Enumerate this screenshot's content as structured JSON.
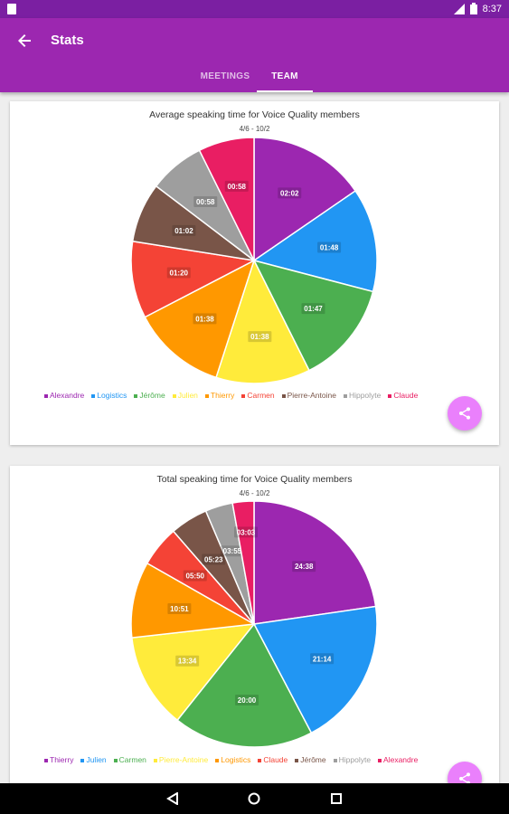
{
  "status_bar": {
    "time": "8:37",
    "signal_icon": "signal-icon",
    "battery_icon": "battery-icon"
  },
  "app_bar": {
    "title": "Stats",
    "back_icon": "arrow-back-icon",
    "color": "#9c27b0"
  },
  "tabs": [
    {
      "label": "MEETINGS",
      "selected": false
    },
    {
      "label": "TEAM",
      "selected": true
    }
  ],
  "chart_data": [
    {
      "type": "pie",
      "title": "Average speaking time for Voice Quality members",
      "subtitle": "4/6 - 10/2",
      "legend_placement": "bottom",
      "slices": [
        {
          "name": "Alexandre",
          "label": "02:02",
          "value": 122,
          "color": "#9c27b0"
        },
        {
          "name": "Logistics",
          "label": "01:48",
          "value": 108,
          "color": "#2196f3"
        },
        {
          "name": "Jérôme",
          "label": "01:47",
          "value": 107,
          "color": "#4caf50"
        },
        {
          "name": "Julien",
          "label": "01:38",
          "value": 98,
          "color": "#ffeb3b"
        },
        {
          "name": "Thierry",
          "label": "01:38",
          "value": 98,
          "color": "#ff9800"
        },
        {
          "name": "Carmen",
          "label": "01:20",
          "value": 80,
          "color": "#f44336"
        },
        {
          "name": "Pierre-Antoine",
          "label": "01:02",
          "value": 62,
          "color": "#795548"
        },
        {
          "name": "Hippolyte",
          "label": "00:58",
          "value": 58,
          "color": "#9e9e9e"
        },
        {
          "name": "Claude",
          "label": "00:58",
          "value": 58,
          "color": "#e91e63"
        }
      ]
    },
    {
      "type": "pie",
      "title": "Total speaking time for Voice Quality members",
      "subtitle": "4/6 - 10/2",
      "legend_placement": "bottom",
      "slices": [
        {
          "name": "Thierry",
          "label": "24:38",
          "value": 1478,
          "color": "#9c27b0"
        },
        {
          "name": "Julien",
          "label": "21:14",
          "value": 1274,
          "color": "#2196f3"
        },
        {
          "name": "Carmen",
          "label": "20:00",
          "value": 1200,
          "color": "#4caf50"
        },
        {
          "name": "Pierre-Antoine",
          "label": "13:34",
          "value": 814,
          "color": "#ffeb3b"
        },
        {
          "name": "Logistics",
          "label": "10:51",
          "value": 651,
          "color": "#ff9800"
        },
        {
          "name": "Claude",
          "label": "05:50",
          "value": 350,
          "color": "#f44336"
        },
        {
          "name": "Jérôme",
          "label": "05:23",
          "value": 323,
          "color": "#795548"
        },
        {
          "name": "Hippolyte",
          "label": "03:55",
          "value": 235,
          "color": "#9e9e9e"
        },
        {
          "name": "Alexandre",
          "label": "03:03",
          "value": 183,
          "color": "#e91e63"
        }
      ]
    }
  ],
  "fab_icon": "share-icon",
  "nav_bar": {
    "back_icon": "nav-back-icon",
    "home_icon": "nav-home-icon",
    "recents_icon": "nav-recents-icon"
  }
}
